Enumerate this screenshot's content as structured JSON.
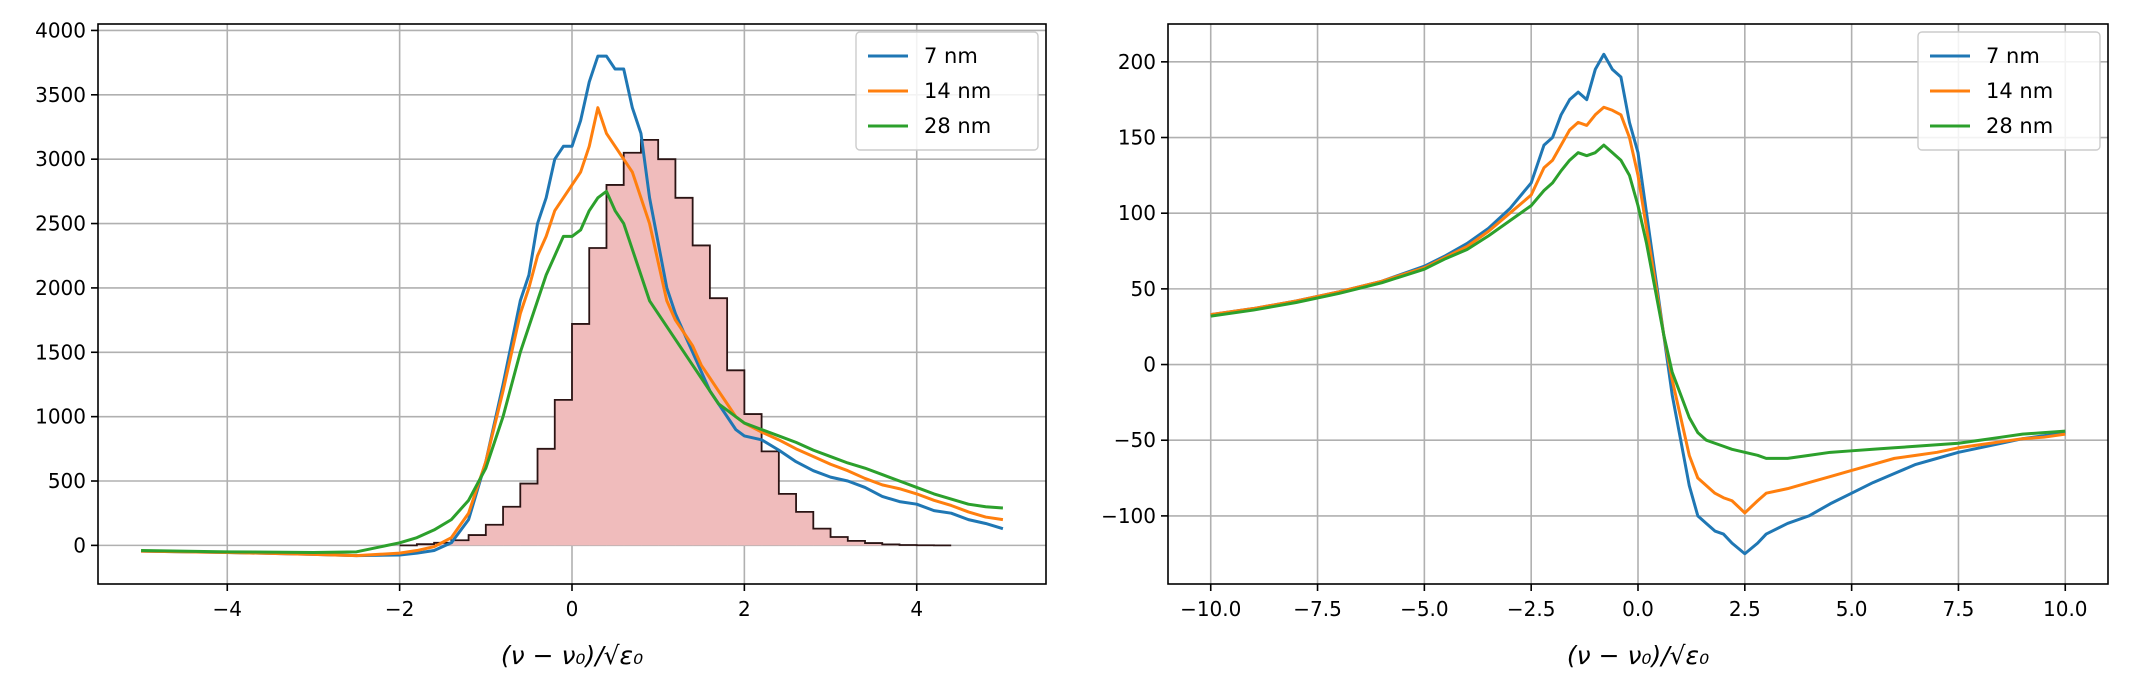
{
  "chart_data": [
    {
      "type": "line",
      "title": "",
      "xlabel": "(ν − ν₀)/√ε₀",
      "ylabel": "",
      "xlim": [
        -5.5,
        5.5
      ],
      "ylim": [
        -300,
        4050
      ],
      "xticks": [
        -4,
        -2,
        0,
        2,
        4
      ],
      "xtick_labels": [
        "−4",
        "−2",
        "0",
        "2",
        "4"
      ],
      "yticks": [
        0,
        500,
        1000,
        1500,
        2000,
        2500,
        3000,
        3500,
        4000
      ],
      "ytick_labels": [
        "0",
        "500",
        "1000",
        "1500",
        "2000",
        "2500",
        "3000",
        "3500",
        "4000"
      ],
      "grid": true,
      "legend_position": "top-right",
      "histogram": {
        "color": "#f0bcbc",
        "edge_color": "#2b1414",
        "bin_width": 0.2,
        "bin_start": -2.0,
        "values": [
          0,
          10,
          20,
          40,
          80,
          160,
          300,
          480,
          750,
          1130,
          1720,
          2310,
          2800,
          3050,
          3150,
          3000,
          2700,
          2330,
          1920,
          1360,
          1020,
          730,
          400,
          260,
          130,
          65,
          35,
          18,
          8,
          3,
          1,
          0
        ]
      },
      "series": [
        {
          "name": "7 nm",
          "color": "#1f77b4",
          "x": [
            -5.0,
            -4.0,
            -3.0,
            -2.5,
            -2.0,
            -1.8,
            -1.6,
            -1.4,
            -1.2,
            -1.0,
            -0.8,
            -0.6,
            -0.5,
            -0.4,
            -0.3,
            -0.2,
            -0.1,
            0.0,
            0.1,
            0.2,
            0.3,
            0.4,
            0.5,
            0.6,
            0.7,
            0.8,
            0.9,
            1.0,
            1.1,
            1.2,
            1.3,
            1.4,
            1.5,
            1.6,
            1.7,
            1.8,
            1.9,
            2.0,
            2.2,
            2.4,
            2.6,
            2.8,
            3.0,
            3.2,
            3.4,
            3.6,
            3.8,
            4.0,
            4.2,
            4.4,
            4.6,
            4.8,
            5.0
          ],
          "values": [
            -45,
            -55,
            -70,
            -80,
            -75,
            -60,
            -40,
            20,
            200,
            650,
            1250,
            1900,
            2100,
            2500,
            2700,
            3000,
            3100,
            3100,
            3300,
            3600,
            3800,
            3800,
            3700,
            3700,
            3400,
            3200,
            2700,
            2350,
            2000,
            1800,
            1650,
            1500,
            1350,
            1200,
            1100,
            1000,
            900,
            850,
            820,
            740,
            650,
            580,
            530,
            500,
            450,
            380,
            340,
            320,
            270,
            250,
            200,
            170,
            130
          ]
        },
        {
          "name": "14 nm",
          "color": "#ff7f0e",
          "x": [
            -5.0,
            -4.0,
            -3.0,
            -2.5,
            -2.0,
            -1.8,
            -1.6,
            -1.4,
            -1.2,
            -1.0,
            -0.8,
            -0.6,
            -0.5,
            -0.4,
            -0.3,
            -0.2,
            -0.1,
            0.0,
            0.1,
            0.2,
            0.3,
            0.4,
            0.5,
            0.6,
            0.7,
            0.8,
            0.9,
            1.0,
            1.1,
            1.2,
            1.3,
            1.4,
            1.5,
            1.6,
            1.7,
            1.8,
            1.9,
            2.0,
            2.2,
            2.4,
            2.6,
            2.8,
            3.0,
            3.2,
            3.4,
            3.6,
            3.8,
            4.0,
            4.2,
            4.4,
            4.6,
            4.8,
            5.0
          ],
          "values": [
            -45,
            -55,
            -70,
            -80,
            -60,
            -40,
            -10,
            60,
            250,
            650,
            1200,
            1800,
            2000,
            2250,
            2400,
            2600,
            2700,
            2800,
            2900,
            3100,
            3400,
            3200,
            3100,
            3000,
            2900,
            2700,
            2500,
            2200,
            1900,
            1750,
            1650,
            1550,
            1400,
            1300,
            1200,
            1100,
            1000,
            950,
            880,
            820,
            750,
            690,
            630,
            580,
            520,
            470,
            440,
            400,
            350,
            310,
            260,
            220,
            200
          ]
        },
        {
          "name": "28 nm",
          "color": "#2ca02c",
          "x": [
            -5.0,
            -4.0,
            -3.0,
            -2.5,
            -2.0,
            -1.8,
            -1.6,
            -1.4,
            -1.2,
            -1.0,
            -0.8,
            -0.6,
            -0.5,
            -0.4,
            -0.3,
            -0.2,
            -0.1,
            0.0,
            0.1,
            0.2,
            0.3,
            0.4,
            0.5,
            0.6,
            0.7,
            0.8,
            0.9,
            1.0,
            1.1,
            1.2,
            1.3,
            1.4,
            1.5,
            1.6,
            1.7,
            1.8,
            1.9,
            2.0,
            2.2,
            2.4,
            2.6,
            2.8,
            3.0,
            3.2,
            3.4,
            3.6,
            3.8,
            4.0,
            4.2,
            4.4,
            4.6,
            4.8,
            5.0
          ],
          "values": [
            -40,
            -50,
            -55,
            -50,
            20,
            60,
            120,
            200,
            350,
            600,
            1000,
            1500,
            1700,
            1900,
            2100,
            2250,
            2400,
            2400,
            2450,
            2600,
            2700,
            2750,
            2600,
            2500,
            2300,
            2100,
            1900,
            1800,
            1700,
            1600,
            1500,
            1400,
            1300,
            1200,
            1100,
            1050,
            1000,
            950,
            900,
            850,
            800,
            740,
            690,
            640,
            600,
            550,
            500,
            450,
            400,
            360,
            320,
            300,
            290
          ]
        }
      ]
    },
    {
      "type": "line",
      "title": "",
      "xlabel": "(ν − ν₀)/√ε₀",
      "ylabel": "",
      "xlim": [
        -11.0,
        11.0
      ],
      "ylim": [
        -145,
        225
      ],
      "xticks": [
        -10,
        -7.5,
        -5,
        -2.5,
        0,
        2.5,
        5,
        7.5,
        10
      ],
      "xtick_labels": [
        "−10.0",
        "−7.5",
        "−5.0",
        "−2.5",
        "0.0",
        "2.5",
        "5.0",
        "7.5",
        "10.0"
      ],
      "yticks": [
        -100,
        -50,
        0,
        50,
        100,
        150,
        200
      ],
      "ytick_labels": [
        "−100",
        "−50",
        "0",
        "50",
        "100",
        "150",
        "200"
      ],
      "grid": true,
      "legend_position": "top-right",
      "series": [
        {
          "name": "7 nm",
          "color": "#1f77b4",
          "x": [
            -10.0,
            -9.0,
            -8.0,
            -7.0,
            -6.0,
            -5.0,
            -4.5,
            -4.0,
            -3.5,
            -3.0,
            -2.5,
            -2.2,
            -2.0,
            -1.8,
            -1.6,
            -1.4,
            -1.2,
            -1.0,
            -0.8,
            -0.6,
            -0.4,
            -0.2,
            0.0,
            0.2,
            0.4,
            0.6,
            0.8,
            1.0,
            1.2,
            1.4,
            1.6,
            1.8,
            2.0,
            2.2,
            2.5,
            2.8,
            3.0,
            3.5,
            4.0,
            4.5,
            5.0,
            5.5,
            6.0,
            6.5,
            7.0,
            7.5,
            8.0,
            8.5,
            9.0,
            9.5,
            10.0
          ],
          "values": [
            33,
            37,
            42,
            48,
            55,
            65,
            72,
            80,
            90,
            103,
            120,
            145,
            150,
            165,
            175,
            180,
            175,
            195,
            205,
            195,
            190,
            160,
            140,
            100,
            60,
            20,
            -20,
            -50,
            -80,
            -100,
            -105,
            -110,
            -112,
            -118,
            -125,
            -118,
            -112,
            -105,
            -100,
            -92,
            -85,
            -78,
            -72,
            -66,
            -62,
            -58,
            -55,
            -52,
            -49,
            -47,
            -45
          ]
        },
        {
          "name": "14 nm",
          "color": "#ff7f0e",
          "x": [
            -10.0,
            -9.0,
            -8.0,
            -7.0,
            -6.0,
            -5.0,
            -4.5,
            -4.0,
            -3.5,
            -3.0,
            -2.5,
            -2.2,
            -2.0,
            -1.8,
            -1.6,
            -1.4,
            -1.2,
            -1.0,
            -0.8,
            -0.6,
            -0.4,
            -0.2,
            0.0,
            0.2,
            0.4,
            0.6,
            0.8,
            1.0,
            1.2,
            1.4,
            1.6,
            1.8,
            2.0,
            2.2,
            2.5,
            2.8,
            3.0,
            3.5,
            4.0,
            4.5,
            5.0,
            5.5,
            6.0,
            6.5,
            7.0,
            7.5,
            8.0,
            8.5,
            9.0,
            9.5,
            10.0
          ],
          "values": [
            33,
            37,
            42,
            48,
            55,
            64,
            71,
            78,
            88,
            100,
            112,
            130,
            135,
            145,
            155,
            160,
            158,
            165,
            170,
            168,
            165,
            150,
            125,
            90,
            55,
            20,
            -10,
            -35,
            -60,
            -75,
            -80,
            -85,
            -88,
            -90,
            -98,
            -90,
            -85,
            -82,
            -78,
            -74,
            -70,
            -66,
            -62,
            -60,
            -58,
            -55,
            -53,
            -51,
            -49,
            -48,
            -46
          ]
        },
        {
          "name": "28 nm",
          "color": "#2ca02c",
          "x": [
            -10.0,
            -9.0,
            -8.0,
            -7.0,
            -6.0,
            -5.0,
            -4.5,
            -4.0,
            -3.5,
            -3.0,
            -2.5,
            -2.2,
            -2.0,
            -1.8,
            -1.6,
            -1.4,
            -1.2,
            -1.0,
            -0.8,
            -0.6,
            -0.4,
            -0.2,
            0.0,
            0.2,
            0.4,
            0.6,
            0.8,
            1.0,
            1.2,
            1.4,
            1.6,
            1.8,
            2.0,
            2.2,
            2.5,
            2.8,
            3.0,
            3.5,
            4.0,
            4.5,
            5.0,
            5.5,
            6.0,
            6.5,
            7.0,
            7.5,
            8.0,
            8.5,
            9.0,
            9.5,
            10.0
          ],
          "values": [
            32,
            36,
            41,
            47,
            54,
            63,
            70,
            76,
            85,
            95,
            105,
            115,
            120,
            128,
            135,
            140,
            138,
            140,
            145,
            140,
            135,
            125,
            105,
            80,
            50,
            20,
            -5,
            -20,
            -35,
            -45,
            -50,
            -52,
            -54,
            -56,
            -58,
            -60,
            -62,
            -62,
            -60,
            -58,
            -57,
            -56,
            -55,
            -54,
            -53,
            -52,
            -50,
            -48,
            -46,
            -45,
            -44
          ]
        }
      ]
    }
  ]
}
